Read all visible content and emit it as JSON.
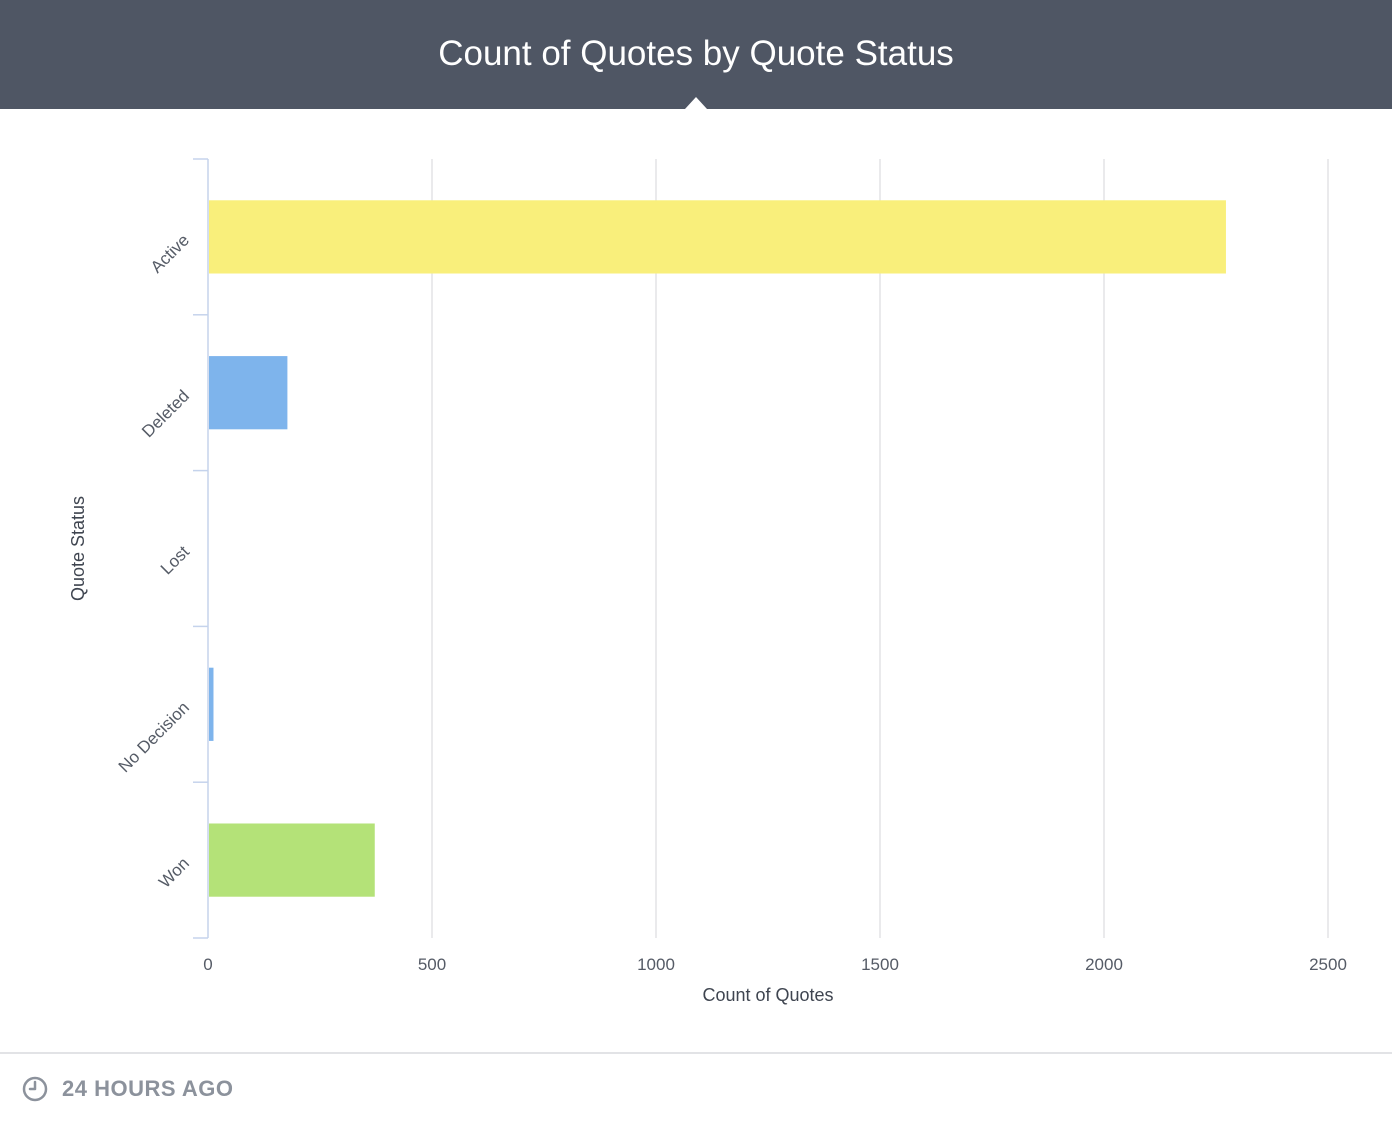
{
  "header": {
    "title": "Count of Quotes by Quote Status"
  },
  "footer": {
    "icon": "clock-icon",
    "timestamp_label": "24 HOURS AGO"
  },
  "chart_data": {
    "type": "bar",
    "orientation": "horizontal",
    "title": "Count of Quotes by Quote Status",
    "xlabel": "Count of Quotes",
    "ylabel": "Quote Status",
    "categories": [
      "Active",
      "Deleted",
      "Lost",
      "No Decision",
      "Won"
    ],
    "values": [
      2270,
      175,
      0,
      10,
      370
    ],
    "colors": [
      "#f9ef7b",
      "#7eb4ec",
      "#7eb4ec",
      "#7eb4ec",
      "#b4e278"
    ],
    "xlim": [
      0,
      2500
    ],
    "xticks": [
      0,
      500,
      1000,
      1500,
      2000,
      2500
    ],
    "grid": true
  }
}
